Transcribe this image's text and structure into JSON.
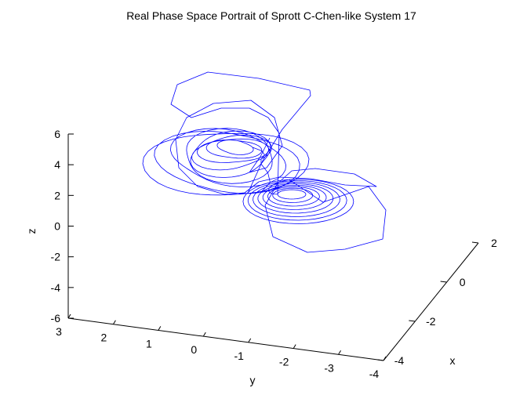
{
  "chart_data": {
    "type": "line",
    "projection": "3d",
    "title": "Real Phase Space Portrait of Sprott C-Chen-like System 17",
    "xlabel": "x",
    "ylabel": "y",
    "zlabel": "z",
    "xlim": [
      -4,
      2
    ],
    "ylim": [
      -4,
      3
    ],
    "zlim": [
      -6,
      6
    ],
    "x_ticks": [
      -4,
      -2,
      0,
      2
    ],
    "x_tick_labels": [
      "-4",
      "-2",
      "0",
      "2"
    ],
    "y_ticks": [
      3,
      2,
      1,
      0,
      -1,
      -2,
      -3,
      -4
    ],
    "y_tick_labels": [
      "3",
      "2",
      "1",
      "0",
      "-1",
      "-2",
      "-3",
      "-4"
    ],
    "z_ticks": [
      6,
      4,
      2,
      0,
      -2,
      -4,
      -6
    ],
    "z_tick_labels": [
      "6",
      "4",
      "2",
      "0",
      "-2",
      "-4",
      "-6"
    ],
    "grid": false,
    "line_color": "#0000ff",
    "series": [
      {
        "name": "trajectory",
        "description": "double-scroll attractor trajectory (projected view)"
      }
    ]
  }
}
